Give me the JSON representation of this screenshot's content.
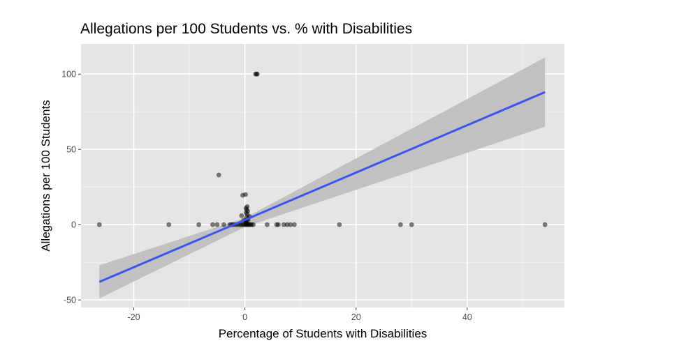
{
  "chart_data": {
    "type": "scatter",
    "title": "Allegations per 100 Students vs. % with Disabilities",
    "xlabel": "Percentage of Students with Disabilities",
    "ylabel": "Allegations per 100 Students",
    "xlim": [
      -29.5,
      57.5
    ],
    "ylim": [
      -55,
      120
    ],
    "x_ticks": [
      -20,
      0,
      20,
      40
    ],
    "y_ticks": [
      -50,
      0,
      50,
      100
    ],
    "grid": true,
    "background": "#e5e5e5",
    "point_color": "#000000",
    "line_color": "#3c53f0",
    "band_color": "#bdbdbd",
    "points": [
      [
        -26.2,
        0
      ],
      [
        -13.7,
        0
      ],
      [
        -8.3,
        0
      ],
      [
        -5.8,
        0
      ],
      [
        -5.0,
        0
      ],
      [
        -4.7,
        33
      ],
      [
        -3.8,
        0
      ],
      [
        -2.7,
        0
      ],
      [
        -2.4,
        0
      ],
      [
        -2.1,
        0
      ],
      [
        -1.7,
        0
      ],
      [
        -1.3,
        0
      ],
      [
        -0.9,
        0
      ],
      [
        -0.6,
        0
      ],
      [
        -0.3,
        0
      ],
      [
        0,
        0
      ],
      [
        0.2,
        0
      ],
      [
        0.4,
        0
      ],
      [
        0.6,
        0
      ],
      [
        0.8,
        0
      ],
      [
        1.0,
        0
      ],
      [
        1.2,
        0
      ],
      [
        1.5,
        0
      ],
      [
        0.3,
        1
      ],
      [
        0.1,
        2
      ],
      [
        0.5,
        2.5
      ],
      [
        0.2,
        3
      ],
      [
        -0.2,
        3
      ],
      [
        0.6,
        4
      ],
      [
        0.3,
        5
      ],
      [
        0.8,
        5.5
      ],
      [
        -0.6,
        6
      ],
      [
        0.4,
        7
      ],
      [
        0.2,
        8
      ],
      [
        0.5,
        9
      ],
      [
        0.3,
        10
      ],
      [
        0.2,
        11
      ],
      [
        0.4,
        12
      ],
      [
        -0.4,
        19.5
      ],
      [
        0.1,
        20
      ],
      [
        2.1,
        100
      ],
      [
        2.2,
        100
      ],
      [
        1.9,
        100
      ],
      [
        4.0,
        0
      ],
      [
        5.7,
        0
      ],
      [
        6.0,
        0
      ],
      [
        7.0,
        0
      ],
      [
        7.6,
        0
      ],
      [
        8.2,
        0
      ],
      [
        8.9,
        0
      ],
      [
        17.0,
        0
      ],
      [
        28.0,
        0
      ],
      [
        30.0,
        0
      ],
      [
        54.0,
        0
      ]
    ],
    "fit_line": {
      "x": [
        -26.2,
        54.0
      ],
      "y": [
        -38,
        88
      ]
    },
    "confidence_band": {
      "x": [
        -26.2,
        0,
        54.0
      ],
      "upper": [
        -27,
        4.5,
        111
      ],
      "lower": [
        -49,
        -1.5,
        65
      ]
    }
  }
}
